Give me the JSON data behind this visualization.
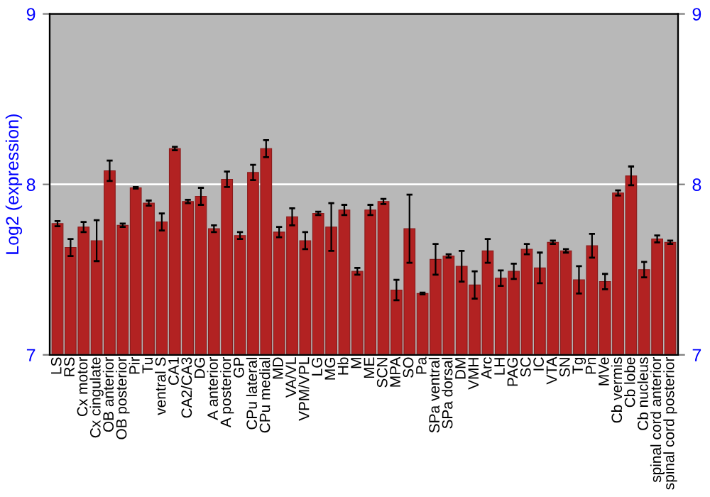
{
  "chart_data": {
    "type": "bar",
    "ylabel": "Log2 (expression)",
    "categories": [
      "LS",
      "RS",
      "Cx motor",
      "Cx cingulate",
      "OB anterior",
      "OB posterior",
      "Pir",
      "Tu",
      "ventral S",
      "CA1",
      "CA2/CA3",
      "DG",
      "A anterior",
      "A posterior",
      "GP",
      "CPu lateral",
      "CPu medial",
      "MD",
      "VA/VL",
      "VPM/VPL",
      "LG",
      "MG",
      "Hb",
      "M",
      "ME",
      "SCN",
      "MPA",
      "SO",
      "Pa",
      "SPa ventral",
      "SPa dorsal",
      "DM",
      "VMH",
      "Arc",
      "LH",
      "PAG",
      "SC",
      "IC",
      "VTA",
      "SN",
      "Tg",
      "Pn",
      "MVe",
      "Cb vermis",
      "Cb lobe",
      "Cb nucleus",
      "spinal cord anterior",
      "spinal cord posterior"
    ],
    "values": [
      7.77,
      7.63,
      7.75,
      7.67,
      8.08,
      7.76,
      7.98,
      7.89,
      7.78,
      8.21,
      7.9,
      7.93,
      7.74,
      8.03,
      7.7,
      8.07,
      8.21,
      7.72,
      7.81,
      7.67,
      7.83,
      7.75,
      7.85,
      7.49,
      7.85,
      7.9,
      7.38,
      7.74,
      7.36,
      7.56,
      7.58,
      7.52,
      7.41,
      7.61,
      7.45,
      7.49,
      7.62,
      7.51,
      7.66,
      7.61,
      7.44,
      7.64,
      7.43,
      7.95,
      8.05,
      7.5,
      7.68,
      7.66
    ],
    "errors": [
      0.015,
      0.05,
      0.03,
      0.12,
      0.06,
      0.01,
      0.005,
      0.015,
      0.05,
      0.01,
      0.01,
      0.05,
      0.02,
      0.045,
      0.02,
      0.045,
      0.05,
      0.03,
      0.05,
      0.05,
      0.01,
      0.14,
      0.03,
      0.02,
      0.03,
      0.015,
      0.06,
      0.2,
      0.005,
      0.09,
      0.01,
      0.09,
      0.08,
      0.07,
      0.045,
      0.045,
      0.03,
      0.09,
      0.01,
      0.01,
      0.08,
      0.07,
      0.045,
      0.015,
      0.055,
      0.045,
      0.02,
      0.01
    ],
    "color": "#b22222",
    "ylim": [
      7,
      9
    ],
    "yticks": [
      7,
      8,
      9
    ],
    "y2lim": [
      7,
      9
    ],
    "y2ticks": [
      7,
      8,
      9
    ],
    "grid": "y"
  }
}
